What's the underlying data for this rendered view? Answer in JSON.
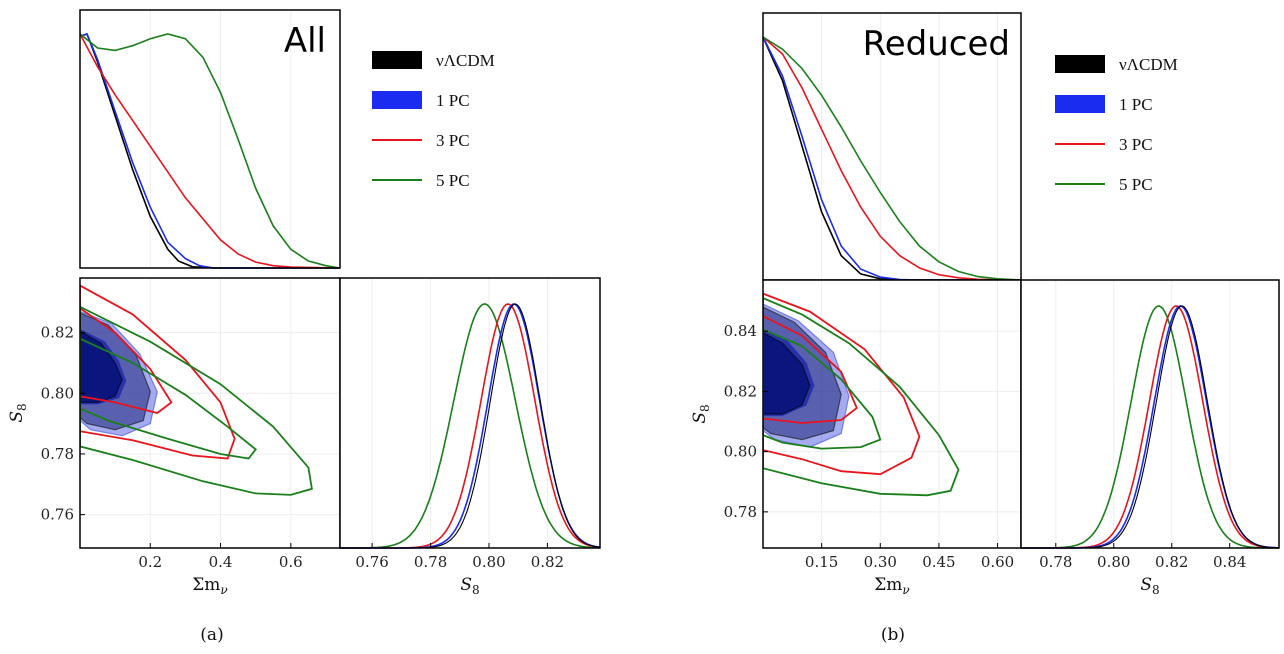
{
  "chart_data": [
    {
      "type": "triangle-posterior",
      "title": "All",
      "caption": "(a)",
      "series": [
        {
          "name": "νΛCDM",
          "color": "#000000",
          "style": "filled",
          "legend_marker": "patch"
        },
        {
          "name": "1 PC",
          "color": "#1a2cf0",
          "style": "filled",
          "legend_marker": "patch"
        },
        {
          "name": "3 PC",
          "color": "#e8141c",
          "style": "line",
          "legend_marker": "line"
        },
        {
          "name": "5 PC",
          "color": "#1a7f1a",
          "style": "line",
          "legend_marker": "line"
        }
      ],
      "params": {
        "mnu": {
          "label": "Σmν",
          "range": [
            0.0,
            0.74
          ],
          "ticks": [
            "0.2",
            "0.4",
            "0.6"
          ],
          "tick_values": [
            0.2,
            0.4,
            0.6
          ]
        },
        "S8": {
          "label": "S8",
          "range": [
            0.749,
            0.838
          ],
          "ticks": [
            "0.76",
            "0.78",
            "0.80",
            "0.82"
          ],
          "tick_values": [
            0.76,
            0.78,
            0.8,
            0.82
          ]
        }
      },
      "marginal_mnu": [
        {
          "series": "νΛCDM",
          "x": [
            0.0,
            0.02,
            0.05,
            0.1,
            0.15,
            0.2,
            0.25,
            0.28,
            0.32,
            0.38,
            0.74
          ],
          "y": [
            0.99,
            1.0,
            0.88,
            0.65,
            0.42,
            0.22,
            0.08,
            0.03,
            0.005,
            0.0,
            0.0
          ]
        },
        {
          "series": "1 PC",
          "x": [
            0.0,
            0.02,
            0.05,
            0.1,
            0.15,
            0.2,
            0.25,
            0.3,
            0.34,
            0.38,
            0.74
          ],
          "y": [
            0.99,
            1.0,
            0.89,
            0.67,
            0.45,
            0.26,
            0.11,
            0.04,
            0.01,
            0.0,
            0.0
          ]
        },
        {
          "series": "3 PC",
          "x": [
            0.0,
            0.05,
            0.1,
            0.2,
            0.3,
            0.4,
            0.45,
            0.5,
            0.55,
            0.6,
            0.74
          ],
          "y": [
            1.0,
            0.86,
            0.74,
            0.52,
            0.3,
            0.12,
            0.06,
            0.025,
            0.01,
            0.004,
            0.0
          ]
        },
        {
          "series": "5 PC",
          "x": [
            0.0,
            0.05,
            0.1,
            0.15,
            0.2,
            0.25,
            0.3,
            0.35,
            0.4,
            0.45,
            0.5,
            0.55,
            0.6,
            0.65,
            0.7,
            0.74
          ],
          "y": [
            1.0,
            0.94,
            0.93,
            0.95,
            0.98,
            1.0,
            0.98,
            0.9,
            0.75,
            0.55,
            0.34,
            0.18,
            0.08,
            0.03,
            0.01,
            0.0
          ]
        }
      ],
      "marginal_S8": [
        {
          "series": "νΛCDM",
          "mean": 0.809,
          "sigma": 0.0085
        },
        {
          "series": "1 PC",
          "mean": 0.8085,
          "sigma": 0.0088
        },
        {
          "series": "3 PC",
          "mean": 0.8065,
          "sigma": 0.0092
        },
        {
          "series": "5 PC",
          "mean": 0.7985,
          "sigma": 0.0105
        }
      ],
      "contours": [
        {
          "series": "νΛCDM",
          "level": "68%",
          "points": [
            [
              0.0,
              0.8205
            ],
            [
              0.06,
              0.8165
            ],
            [
              0.1,
              0.81
            ],
            [
              0.12,
              0.8045
            ],
            [
              0.1,
              0.799
            ],
            [
              0.05,
              0.797
            ],
            [
              0.0,
              0.797
            ]
          ]
        },
        {
          "series": "νΛCDM",
          "level": "95%",
          "points": [
            [
              0.0,
              0.8265
            ],
            [
              0.08,
              0.8225
            ],
            [
              0.16,
              0.8125
            ],
            [
              0.2,
              0.8005
            ],
            [
              0.18,
              0.791
            ],
            [
              0.1,
              0.788
            ],
            [
              0.02,
              0.79
            ],
            [
              0.0,
              0.792
            ]
          ]
        },
        {
          "series": "1 PC",
          "level": "68%",
          "points": [
            [
              0.0,
              0.821
            ],
            [
              0.07,
              0.817
            ],
            [
              0.11,
              0.8105
            ],
            [
              0.13,
              0.804
            ],
            [
              0.11,
              0.7985
            ],
            [
              0.05,
              0.7965
            ],
            [
              0.0,
              0.7965
            ]
          ]
        },
        {
          "series": "1 PC",
          "level": "95%",
          "points": [
            [
              0.0,
              0.827
            ],
            [
              0.09,
              0.823
            ],
            [
              0.17,
              0.813
            ],
            [
              0.22,
              0.8005
            ],
            [
              0.2,
              0.79
            ],
            [
              0.12,
              0.786
            ],
            [
              0.03,
              0.788
            ],
            [
              0.0,
              0.791
            ]
          ]
        },
        {
          "series": "3 PC",
          "level": "68%",
          "points": [
            [
              0.0,
              0.828
            ],
            [
              0.1,
              0.82
            ],
            [
              0.2,
              0.808
            ],
            [
              0.26,
              0.797
            ],
            [
              0.22,
              0.7935
            ],
            [
              0.1,
              0.797
            ],
            [
              0.0,
              0.799
            ]
          ]
        },
        {
          "series": "3 PC",
          "level": "95%",
          "points": [
            [
              0.0,
              0.8355
            ],
            [
              0.15,
              0.826
            ],
            [
              0.3,
              0.811
            ],
            [
              0.4,
              0.797
            ],
            [
              0.44,
              0.785
            ],
            [
              0.42,
              0.7785
            ],
            [
              0.32,
              0.7795
            ],
            [
              0.15,
              0.7845
            ],
            [
              0.0,
              0.7875
            ]
          ]
        },
        {
          "series": "5 PC",
          "level": "68%",
          "points": [
            [
              0.0,
              0.818
            ],
            [
              0.15,
              0.81
            ],
            [
              0.3,
              0.7995
            ],
            [
              0.42,
              0.789
            ],
            [
              0.5,
              0.7815
            ],
            [
              0.48,
              0.7785
            ],
            [
              0.4,
              0.78
            ],
            [
              0.25,
              0.785
            ],
            [
              0.08,
              0.791
            ],
            [
              0.0,
              0.795
            ]
          ]
        },
        {
          "series": "5 PC",
          "level": "95%",
          "points": [
            [
              0.0,
              0.8285
            ],
            [
              0.2,
              0.817
            ],
            [
              0.4,
              0.803
            ],
            [
              0.55,
              0.789
            ],
            [
              0.65,
              0.7755
            ],
            [
              0.66,
              0.7685
            ],
            [
              0.6,
              0.7665
            ],
            [
              0.5,
              0.767
            ],
            [
              0.35,
              0.771
            ],
            [
              0.15,
              0.778
            ],
            [
              0.0,
              0.7825
            ]
          ]
        }
      ]
    },
    {
      "type": "triangle-posterior",
      "title": "Reduced",
      "caption": "(b)",
      "series": [
        {
          "name": "νΛCDM",
          "color": "#000000",
          "style": "filled",
          "legend_marker": "patch"
        },
        {
          "name": "1 PC",
          "color": "#1a2cf0",
          "style": "filled",
          "legend_marker": "patch"
        },
        {
          "name": "3 PC",
          "color": "#e8141c",
          "style": "line",
          "legend_marker": "line"
        },
        {
          "name": "5 PC",
          "color": "#1a7f1a",
          "style": "line",
          "legend_marker": "line"
        }
      ],
      "params": {
        "mnu": {
          "label": "Σmν",
          "range": [
            0.0,
            0.66
          ],
          "ticks": [
            "0.15",
            "0.30",
            "0.45",
            "0.60"
          ],
          "tick_values": [
            0.15,
            0.3,
            0.45,
            0.6
          ]
        },
        "S8": {
          "label": "S8",
          "range": [
            0.768,
            0.857
          ],
          "ticks": [
            "0.78",
            "0.80",
            "0.82",
            "0.84"
          ],
          "tick_values": [
            0.78,
            0.8,
            0.82,
            0.84
          ]
        }
      },
      "marginal_mnu": [
        {
          "series": "νΛCDM",
          "x": [
            0.0,
            0.05,
            0.1,
            0.15,
            0.2,
            0.25,
            0.3,
            0.35,
            0.66
          ],
          "y": [
            1.0,
            0.82,
            0.55,
            0.28,
            0.1,
            0.025,
            0.005,
            0.0,
            0.0
          ]
        },
        {
          "series": "1 PC",
          "x": [
            0.0,
            0.05,
            0.1,
            0.15,
            0.2,
            0.25,
            0.3,
            0.35,
            0.4,
            0.66
          ],
          "y": [
            1.0,
            0.84,
            0.59,
            0.33,
            0.14,
            0.045,
            0.012,
            0.002,
            0.0,
            0.0
          ]
        },
        {
          "series": "3 PC",
          "x": [
            0.0,
            0.05,
            0.1,
            0.15,
            0.2,
            0.25,
            0.3,
            0.35,
            0.4,
            0.45,
            0.5,
            0.55,
            0.6,
            0.66
          ],
          "y": [
            1.0,
            0.93,
            0.79,
            0.62,
            0.45,
            0.3,
            0.18,
            0.1,
            0.05,
            0.022,
            0.009,
            0.003,
            0.001,
            0.0
          ]
        },
        {
          "series": "5 PC",
          "x": [
            0.0,
            0.05,
            0.1,
            0.15,
            0.2,
            0.25,
            0.3,
            0.35,
            0.4,
            0.45,
            0.5,
            0.55,
            0.6,
            0.66
          ],
          "y": [
            1.0,
            0.95,
            0.87,
            0.76,
            0.63,
            0.49,
            0.36,
            0.24,
            0.14,
            0.075,
            0.035,
            0.014,
            0.005,
            0.0
          ]
        }
      ],
      "marginal_S8": [
        {
          "series": "νΛCDM",
          "mean": 0.8235,
          "sigma": 0.0088
        },
        {
          "series": "1 PC",
          "mean": 0.823,
          "sigma": 0.009
        },
        {
          "series": "3 PC",
          "mean": 0.8215,
          "sigma": 0.0092
        },
        {
          "series": "5 PC",
          "mean": 0.8155,
          "sigma": 0.0095
        }
      ],
      "contours": [
        {
          "series": "νΛCDM",
          "level": "68%",
          "points": [
            [
              0.0,
              0.8395
            ],
            [
              0.05,
              0.836
            ],
            [
              0.1,
              0.829
            ],
            [
              0.12,
              0.822
            ],
            [
              0.1,
              0.8155
            ],
            [
              0.05,
              0.8125
            ],
            [
              0.0,
              0.8125
            ]
          ]
        },
        {
          "series": "νΛCDM",
          "level": "95%",
          "points": [
            [
              0.0,
              0.848
            ],
            [
              0.08,
              0.843
            ],
            [
              0.16,
              0.833
            ],
            [
              0.2,
              0.819
            ],
            [
              0.18,
              0.807
            ],
            [
              0.1,
              0.804
            ],
            [
              0.02,
              0.806
            ],
            [
              0.0,
              0.808
            ]
          ]
        },
        {
          "series": "1 PC",
          "level": "68%",
          "points": [
            [
              0.0,
              0.8405
            ],
            [
              0.06,
              0.837
            ],
            [
              0.11,
              0.8295
            ],
            [
              0.13,
              0.822
            ],
            [
              0.11,
              0.8155
            ],
            [
              0.05,
              0.812
            ],
            [
              0.0,
              0.812
            ]
          ]
        },
        {
          "series": "1 PC",
          "level": "95%",
          "points": [
            [
              0.0,
              0.849
            ],
            [
              0.09,
              0.8435
            ],
            [
              0.18,
              0.833
            ],
            [
              0.22,
              0.8185
            ],
            [
              0.2,
              0.806
            ],
            [
              0.12,
              0.8015
            ],
            [
              0.03,
              0.804
            ],
            [
              0.0,
              0.807
            ]
          ]
        },
        {
          "series": "3 PC",
          "level": "68%",
          "points": [
            [
              0.0,
              0.845
            ],
            [
              0.1,
              0.8385
            ],
            [
              0.2,
              0.8265
            ],
            [
              0.24,
              0.8145
            ],
            [
              0.2,
              0.8105
            ],
            [
              0.1,
              0.8095
            ],
            [
              0.0,
              0.811
            ]
          ]
        },
        {
          "series": "3 PC",
          "level": "95%",
          "points": [
            [
              0.0,
              0.8525
            ],
            [
              0.12,
              0.8465
            ],
            [
              0.26,
              0.834
            ],
            [
              0.36,
              0.818
            ],
            [
              0.4,
              0.805
            ],
            [
              0.38,
              0.798
            ],
            [
              0.3,
              0.7925
            ],
            [
              0.2,
              0.7935
            ],
            [
              0.1,
              0.7975
            ],
            [
              0.0,
              0.8005
            ]
          ]
        },
        {
          "series": "5 PC",
          "level": "68%",
          "points": [
            [
              0.0,
              0.8405
            ],
            [
              0.1,
              0.835
            ],
            [
              0.2,
              0.824
            ],
            [
              0.28,
              0.8115
            ],
            [
              0.3,
              0.804
            ],
            [
              0.25,
              0.8015
            ],
            [
              0.15,
              0.801
            ],
            [
              0.05,
              0.803
            ],
            [
              0.0,
              0.8055
            ]
          ]
        },
        {
          "series": "5 PC",
          "level": "95%",
          "points": [
            [
              0.0,
              0.851
            ],
            [
              0.1,
              0.8455
            ],
            [
              0.22,
              0.836
            ],
            [
              0.35,
              0.8215
            ],
            [
              0.45,
              0.8055
            ],
            [
              0.5,
              0.794
            ],
            [
              0.48,
              0.787
            ],
            [
              0.42,
              0.7855
            ],
            [
              0.3,
              0.786
            ],
            [
              0.15,
              0.7895
            ],
            [
              0.0,
              0.7945
            ]
          ]
        }
      ]
    }
  ]
}
